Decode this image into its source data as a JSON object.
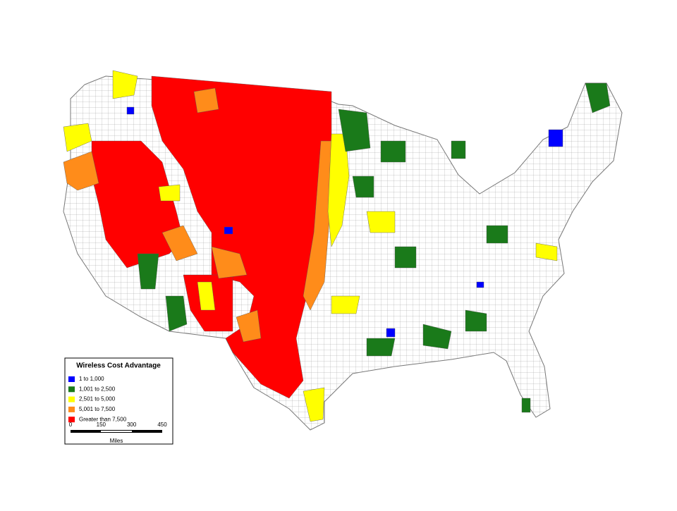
{
  "legend": {
    "title": "Wireless Cost Advantage",
    "items": [
      {
        "label": "1 to 1,000",
        "color": "#0000ff"
      },
      {
        "label": "1,001 to 2,500",
        "color": "#1a7a1a"
      },
      {
        "label": "2,501 to 5,000",
        "color": "#ffff00"
      },
      {
        "label": "5,001 to 7,500",
        "color": "#ff8c1a"
      },
      {
        "label": "Greater than 7,500",
        "color": "#ff0000"
      }
    ]
  },
  "scale": {
    "ticks": [
      "0",
      "150",
      "300",
      "450"
    ],
    "unit": "Miles"
  }
}
